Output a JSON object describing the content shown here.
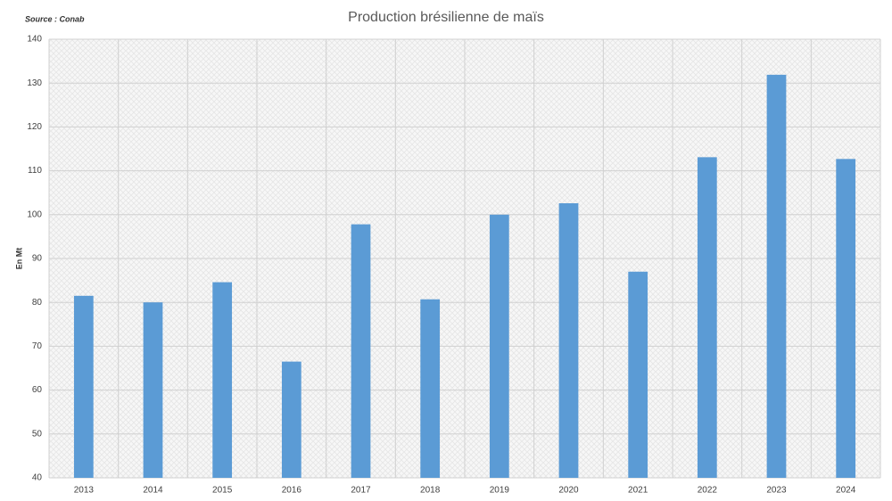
{
  "chart_data": {
    "type": "bar",
    "title": "Production brésilienne de maïs",
    "source": "Source : Conab",
    "y_label": "En Mt",
    "categories": [
      "2013",
      "2014",
      "2015",
      "2016",
      "2017",
      "2018",
      "2019",
      "2020",
      "2021",
      "2022",
      "2023",
      "2024"
    ],
    "values": [
      81.5,
      80,
      84.6,
      66.5,
      97.8,
      80.7,
      100,
      102.6,
      87,
      113.1,
      131.9,
      112.7
    ],
    "color": "#5b9bd5",
    "ylim": [
      40,
      140
    ],
    "yticks": [
      40,
      50,
      60,
      70,
      80,
      90,
      100,
      110,
      120,
      130,
      140
    ],
    "grid": true
  }
}
